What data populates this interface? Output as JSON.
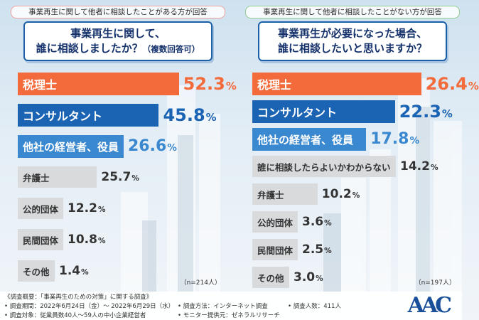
{
  "colors": {
    "orange": "#f36b3b",
    "blue": "#1b64b3",
    "lightblue": "#3a88cf",
    "gray": "#d8dadc"
  },
  "footer": {
    "title": "《調査概要：「事業再生のための対策」に関する調査》",
    "period": "• 調査期間：2022年6月24日（金）〜 2022年6月29日（水）",
    "method": "• 調査方法：インターネット調査",
    "count": "• 調査人数：411人",
    "target": "• 調査対象：従業員数40人〜59人の中小企業経営者",
    "provider": "• モニター提供元：ゼネラルリサーチ",
    "logo": "AAC"
  },
  "chart_data": [
    {
      "type": "bar",
      "heading": "事業再生に関して他者に相談したことがある方が回答",
      "title_line1": "事業再生に関して、",
      "title_line2": "誰に相談しましたか？",
      "title_note": "（複数回答可）",
      "n_note": "（n=214人）",
      "unit": "%",
      "ylim": [
        0,
        60
      ],
      "categories": [
        "税理士",
        "コンサルタント",
        "他社の経営者、役員",
        "弁護士",
        "公的団体",
        "民間団体",
        "その他"
      ],
      "values": [
        52.3,
        45.8,
        26.6,
        25.7,
        12.2,
        10.8,
        1.4
      ]
    },
    {
      "type": "bar",
      "heading": "事業再生に関して他者に相談したことがない方が回答",
      "title_line1": "事業再生が必要になった場合、",
      "title_line2": "誰に相談したいと思いますか？",
      "title_note": "",
      "n_note": "（n=197人）",
      "unit": "%",
      "ylim": [
        0,
        30
      ],
      "categories": [
        "税理士",
        "コンサルタント",
        "他社の経営者、役員",
        "誰に相談したらよいかわからない",
        "弁護士",
        "公的団体",
        "民間団体",
        "その他"
      ],
      "values": [
        26.4,
        22.3,
        17.8,
        14.2,
        10.2,
        3.6,
        2.5,
        3.0
      ]
    }
  ]
}
